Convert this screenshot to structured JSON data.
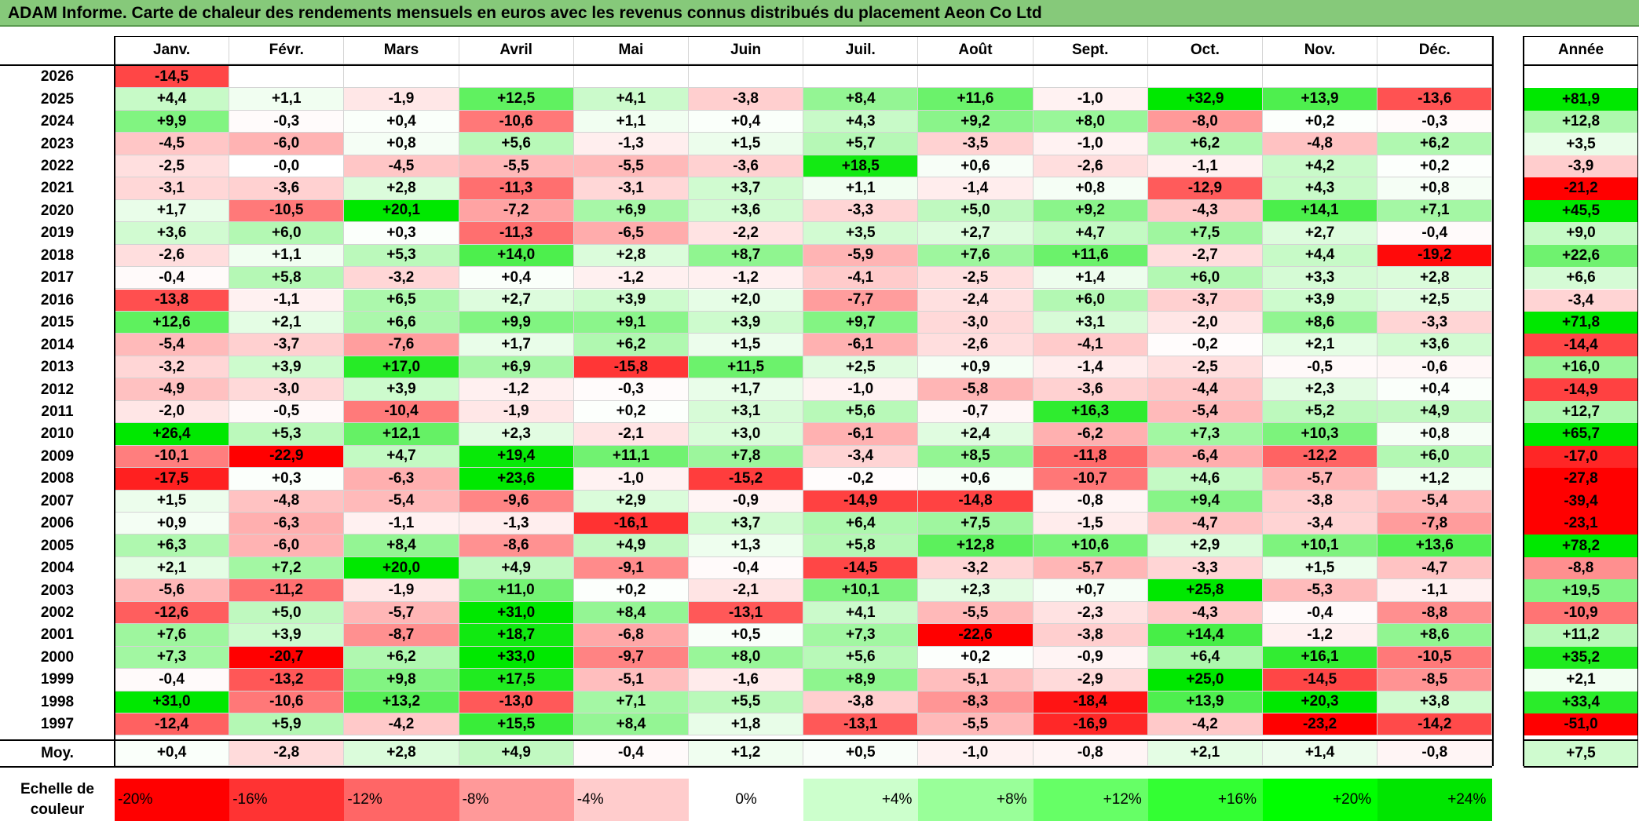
{
  "title": "ADAM Informe. Carte de chaleur des rendements mensuels en euros avec les revenus connus distribués du placement Aeon Co Ltd",
  "chart_data": {
    "type": "heatmap",
    "months": [
      "Janv.",
      "Févr.",
      "Mars",
      "Avril",
      "Mai",
      "Juin",
      "Juil.",
      "Août",
      "Sept.",
      "Oct.",
      "Nov.",
      "Déc."
    ],
    "year_label": "Année",
    "avg_label": "Moy.",
    "rows": [
      {
        "year": "2026",
        "values": [
          "-14,5",
          "",
          "",
          "",
          "",
          "",
          "",
          "",
          "",
          "",
          "",
          ""
        ],
        "annual": ""
      },
      {
        "year": "2025",
        "values": [
          "+4,4",
          "+1,1",
          "-1,9",
          "+12,5",
          "+4,1",
          "-3,8",
          "+8,4",
          "+11,6",
          "-1,0",
          "+32,9",
          "+13,9",
          "-13,6"
        ],
        "annual": "+81,9"
      },
      {
        "year": "2024",
        "values": [
          "+9,9",
          "-0,3",
          "+0,4",
          "-10,6",
          "+1,1",
          "+0,4",
          "+4,3",
          "+9,2",
          "+8,0",
          "-8,0",
          "+0,2",
          "-0,3"
        ],
        "annual": "+12,8"
      },
      {
        "year": "2023",
        "values": [
          "-4,5",
          "-6,0",
          "+0,8",
          "+5,6",
          "-1,3",
          "+1,5",
          "+5,7",
          "-3,5",
          "-1,0",
          "+6,2",
          "-4,8",
          "+6,2"
        ],
        "annual": "+3,5"
      },
      {
        "year": "2022",
        "values": [
          "-2,5",
          "-0,0",
          "-4,5",
          "-5,5",
          "-5,5",
          "-3,6",
          "+18,5",
          "+0,6",
          "-2,6",
          "-1,1",
          "+4,2",
          "+0,2"
        ],
        "annual": "-3,9"
      },
      {
        "year": "2021",
        "values": [
          "-3,1",
          "-3,6",
          "+2,8",
          "-11,3",
          "-3,1",
          "+3,7",
          "+1,1",
          "-1,4",
          "+0,8",
          "-12,9",
          "+4,3",
          "+0,8"
        ],
        "annual": "-21,2"
      },
      {
        "year": "2020",
        "values": [
          "+1,7",
          "-10,5",
          "+20,1",
          "-7,2",
          "+6,9",
          "+3,6",
          "-3,3",
          "+5,0",
          "+9,2",
          "-4,3",
          "+14,1",
          "+7,1"
        ],
        "annual": "+45,5"
      },
      {
        "year": "2019",
        "values": [
          "+3,6",
          "+6,0",
          "+0,3",
          "-11,3",
          "-6,5",
          "-2,2",
          "+3,5",
          "+2,7",
          "+4,7",
          "+7,5",
          "+2,7",
          "-0,4"
        ],
        "annual": "+9,0"
      },
      {
        "year": "2018",
        "values": [
          "-2,6",
          "+1,1",
          "+5,3",
          "+14,0",
          "+2,8",
          "+8,7",
          "-5,9",
          "+7,6",
          "+11,6",
          "-2,7",
          "+4,4",
          "-19,2"
        ],
        "annual": "+22,6"
      },
      {
        "year": "2017",
        "values": [
          "-0,4",
          "+5,8",
          "-3,2",
          "+0,4",
          "-1,2",
          "-1,2",
          "-4,1",
          "-2,5",
          "+1,4",
          "+6,0",
          "+3,3",
          "+2,8"
        ],
        "annual": "+6,6"
      },
      {
        "year": "2016",
        "values": [
          "-13,8",
          "-1,1",
          "+6,5",
          "+2,7",
          "+3,9",
          "+2,0",
          "-7,7",
          "-2,4",
          "+6,0",
          "-3,7",
          "+3,9",
          "+2,5"
        ],
        "annual": "-3,4"
      },
      {
        "year": "2015",
        "values": [
          "+12,6",
          "+2,1",
          "+6,6",
          "+9,9",
          "+9,1",
          "+3,9",
          "+9,7",
          "-3,0",
          "+3,1",
          "-2,0",
          "+8,6",
          "-3,3"
        ],
        "annual": "+71,8"
      },
      {
        "year": "2014",
        "values": [
          "-5,4",
          "-3,7",
          "-7,6",
          "+1,7",
          "+6,2",
          "+1,5",
          "-6,1",
          "-2,6",
          "-4,1",
          "-0,2",
          "+2,1",
          "+3,6"
        ],
        "annual": "-14,4"
      },
      {
        "year": "2013",
        "values": [
          "-3,2",
          "+3,9",
          "+17,0",
          "+6,9",
          "-15,8",
          "+11,5",
          "+2,5",
          "+0,9",
          "-1,4",
          "-2,5",
          "-0,5",
          "-0,6"
        ],
        "annual": "+16,0"
      },
      {
        "year": "2012",
        "values": [
          "-4,9",
          "-3,0",
          "+3,9",
          "-1,2",
          "-0,3",
          "+1,7",
          "-1,0",
          "-5,8",
          "-3,6",
          "-4,4",
          "+2,3",
          "+0,4"
        ],
        "annual": "-14,9"
      },
      {
        "year": "2011",
        "values": [
          "-2,0",
          "-0,5",
          "-10,4",
          "-1,9",
          "+0,2",
          "+3,1",
          "+5,6",
          "-0,7",
          "+16,3",
          "-5,4",
          "+5,2",
          "+4,9"
        ],
        "annual": "+12,7"
      },
      {
        "year": "2010",
        "values": [
          "+26,4",
          "+5,3",
          "+12,1",
          "+2,3",
          "-2,1",
          "+3,0",
          "-6,1",
          "+2,4",
          "-6,2",
          "+7,3",
          "+10,3",
          "+0,8"
        ],
        "annual": "+65,7"
      },
      {
        "year": "2009",
        "values": [
          "-10,1",
          "-22,9",
          "+4,7",
          "+19,4",
          "+11,1",
          "+7,8",
          "-3,4",
          "+8,5",
          "-11,8",
          "-6,4",
          "-12,2",
          "+6,0"
        ],
        "annual": "-17,0"
      },
      {
        "year": "2008",
        "values": [
          "-17,5",
          "+0,3",
          "-6,3",
          "+23,6",
          "-1,0",
          "-15,2",
          "-0,2",
          "+0,6",
          "-10,7",
          "+4,6",
          "-5,7",
          "+1,2"
        ],
        "annual": "-27,8"
      },
      {
        "year": "2007",
        "values": [
          "+1,5",
          "-4,8",
          "-5,4",
          "-9,6",
          "+2,9",
          "-0,9",
          "-14,9",
          "-14,8",
          "-0,8",
          "+9,4",
          "-3,8",
          "-5,4"
        ],
        "annual": "-39,4"
      },
      {
        "year": "2006",
        "values": [
          "+0,9",
          "-6,3",
          "-1,1",
          "-1,3",
          "-16,1",
          "+3,7",
          "+6,4",
          "+7,5",
          "-1,5",
          "-4,7",
          "-3,4",
          "-7,8"
        ],
        "annual": "-23,1"
      },
      {
        "year": "2005",
        "values": [
          "+6,3",
          "-6,0",
          "+8,4",
          "-8,6",
          "+4,9",
          "+1,3",
          "+5,8",
          "+12,8",
          "+10,6",
          "+2,9",
          "+10,1",
          "+13,6"
        ],
        "annual": "+78,2"
      },
      {
        "year": "2004",
        "values": [
          "+2,1",
          "+7,2",
          "+20,0",
          "+4,9",
          "-9,1",
          "-0,4",
          "-14,5",
          "-3,2",
          "-5,7",
          "-3,3",
          "+1,5",
          "-4,7"
        ],
        "annual": "-8,8"
      },
      {
        "year": "2003",
        "values": [
          "-5,6",
          "-11,2",
          "-1,9",
          "+11,0",
          "+0,2",
          "-2,1",
          "+10,1",
          "+2,3",
          "+0,7",
          "+25,8",
          "-5,3",
          "-1,1"
        ],
        "annual": "+19,5"
      },
      {
        "year": "2002",
        "values": [
          "-12,6",
          "+5,0",
          "-5,7",
          "+31,0",
          "+8,4",
          "-13,1",
          "+4,1",
          "-5,5",
          "-2,3",
          "-4,3",
          "-0,4",
          "-8,8"
        ],
        "annual": "-10,9"
      },
      {
        "year": "2001",
        "values": [
          "+7,6",
          "+3,9",
          "-8,7",
          "+18,7",
          "-6,8",
          "+0,5",
          "+7,3",
          "-22,6",
          "-3,8",
          "+14,4",
          "-1,2",
          "+8,6"
        ],
        "annual": "+11,2"
      },
      {
        "year": "2000",
        "values": [
          "+7,3",
          "-20,7",
          "+6,2",
          "+33,0",
          "-9,7",
          "+8,0",
          "+5,6",
          "+0,2",
          "-0,9",
          "+6,4",
          "+16,1",
          "-10,5"
        ],
        "annual": "+35,2"
      },
      {
        "year": "1999",
        "values": [
          "-0,4",
          "-13,2",
          "+9,8",
          "+17,5",
          "-5,1",
          "-1,6",
          "+8,9",
          "-5,1",
          "-2,9",
          "+25,0",
          "-14,5",
          "-8,5"
        ],
        "annual": "+2,1"
      },
      {
        "year": "1998",
        "values": [
          "+31,0",
          "-10,6",
          "+13,2",
          "-13,0",
          "+7,1",
          "+5,5",
          "-3,8",
          "-8,3",
          "-18,4",
          "+13,9",
          "+20,3",
          "+3,8"
        ],
        "annual": "+33,4"
      },
      {
        "year": "1997",
        "values": [
          "-12,4",
          "+5,9",
          "-4,2",
          "+15,5",
          "+8,4",
          "+1,8",
          "-13,1",
          "-5,5",
          "-16,9",
          "-4,2",
          "-23,2",
          "-14,2"
        ],
        "annual": "-51,0"
      }
    ],
    "averages": {
      "values": [
        "+0,4",
        "-2,8",
        "+2,8",
        "+4,9",
        "-0,4",
        "+1,2",
        "+0,5",
        "-1,0",
        "-0,8",
        "+2,1",
        "+1,4",
        "-0,8"
      ],
      "annual": "+7,5"
    },
    "scale": {
      "label_line1": "Echelle de",
      "label_line2": "couleur",
      "stops": [
        {
          "label": "-20%",
          "color": "#ff0000"
        },
        {
          "label": "-16%",
          "color": "#ff3333"
        },
        {
          "label": "-12%",
          "color": "#ff6666"
        },
        {
          "label": "-8%",
          "color": "#ff9999"
        },
        {
          "label": "-4%",
          "color": "#ffcccc"
        },
        {
          "label": "0%",
          "color": "#ffffff"
        },
        {
          "label": "+4%",
          "color": "#ccffcc"
        },
        {
          "label": "+8%",
          "color": "#99ff99"
        },
        {
          "label": "+12%",
          "color": "#66ff66"
        },
        {
          "label": "+16%",
          "color": "#33ff33"
        },
        {
          "label": "+20%",
          "color": "#00ff00"
        },
        {
          "label": "+24%",
          "color": "#00e600"
        }
      ]
    },
    "colors": {
      "title_bg": "#86c97a",
      "negative_max": "#ff0000",
      "neutral": "#ffffff",
      "positive_max": "#00e600"
    }
  }
}
